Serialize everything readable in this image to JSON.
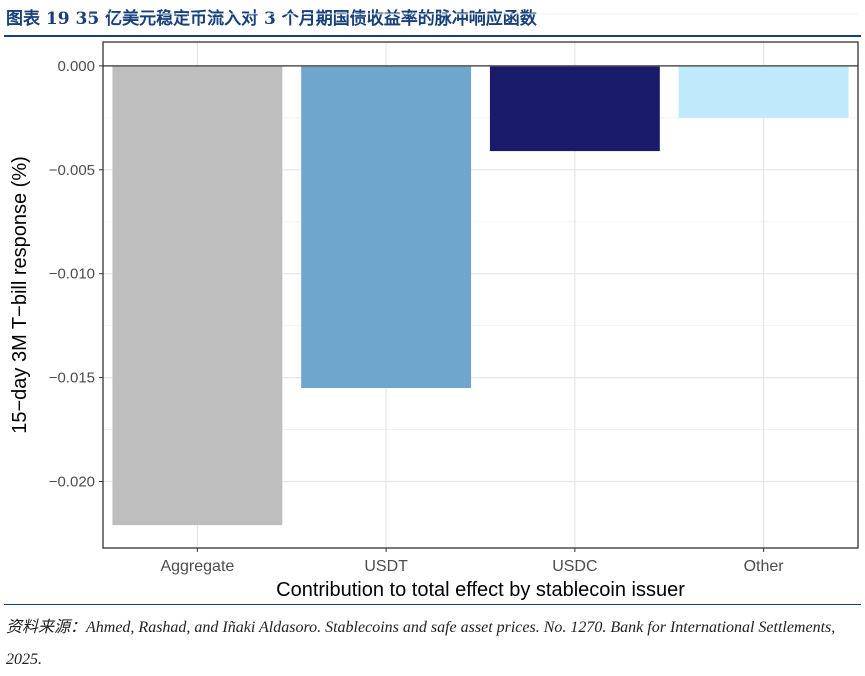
{
  "title": "图表 19   35 亿美元稳定币流入对 3 个月期国债收益率的脉冲响应函数",
  "source": "资料来源：Ahmed, Rashad, and Iñaki Aldasoro. Stablecoins and safe asset prices. No. 1270. Bank for International Settlements, 2025.",
  "chart_data": {
    "type": "bar",
    "categories": [
      "Aggregate",
      "USDT",
      "USDC",
      "Other"
    ],
    "values": [
      -0.0221,
      -0.0155,
      -0.0041,
      -0.0025
    ],
    "colors": [
      "#bebebe",
      "#6fa6cd",
      "#1a1a6b",
      "#bfeafc"
    ],
    "xlabel": "Contribution to total effect by stablecoin issuer",
    "ylabel": "15−day 3M T−bill response (%)",
    "ylim": [
      -0.0232,
      0.00115
    ],
    "yticks": [
      0,
      -0.005,
      -0.01,
      -0.015,
      -0.02
    ],
    "ytick_labels": [
      "0.000",
      "−0.005",
      "−0.010",
      "−0.015",
      "−0.020"
    ],
    "grid": true,
    "legend": "none"
  }
}
